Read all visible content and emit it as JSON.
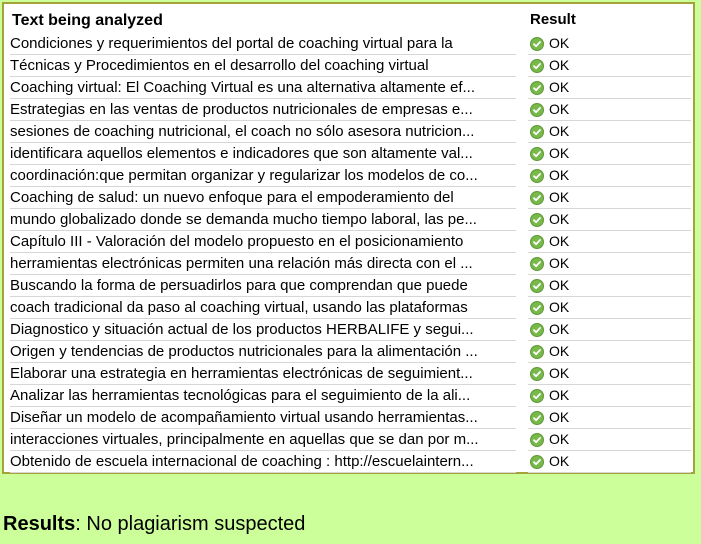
{
  "table": {
    "header_text": "Text being analyzed",
    "header_result": "Result",
    "rows": [
      {
        "text": "Condiciones y requerimientos del portal de coaching virtual para la",
        "result": "OK"
      },
      {
        "text": "Técnicas y Procedimientos en el desarrollo del coaching virtual",
        "result": "OK"
      },
      {
        "text": "Coaching virtual: El Coaching Virtual es una alternativa altamente ef...",
        "result": "OK"
      },
      {
        "text": "Estrategias en las ventas de productos nutricionales de empresas e...",
        "result": "OK"
      },
      {
        "text": "sesiones de coaching nutricional, el coach no sólo asesora nutricion...",
        "result": "OK"
      },
      {
        "text": "identificara aquellos elementos e indicadores que son altamente val...",
        "result": "OK"
      },
      {
        "text": "coordinación:que permitan organizar y regularizar los modelos de co...",
        "result": "OK"
      },
      {
        "text": "Coaching de salud: un nuevo enfoque para el empoderamiento del",
        "result": "OK"
      },
      {
        "text": "mundo globalizado donde se demanda mucho tiempo laboral, las pe...",
        "result": "OK"
      },
      {
        "text": "Capítulo III - Valoración del modelo propuesto en el posicionamiento",
        "result": "OK"
      },
      {
        "text": "herramientas electrónicas permiten una relación más directa con el ...",
        "result": "OK"
      },
      {
        "text": "Buscando la forma de persuadirlos para que comprendan que puede",
        "result": "OK"
      },
      {
        "text": "coach tradicional da paso al coaching virtual, usando las plataformas",
        "result": "OK"
      },
      {
        "text": "Diagnostico y situación actual de los productos HERBALIFE y segui...",
        "result": "OK"
      },
      {
        "text": "Origen y tendencias de productos nutricionales para la alimentación ...",
        "result": "OK"
      },
      {
        "text": "Elaborar una estrategia en herramientas electrónicas de seguimient...",
        "result": "OK"
      },
      {
        "text": "Analizar las herramientas tecnológicas para el seguimiento de la ali...",
        "result": "OK"
      },
      {
        "text": "Diseñar un modelo de acompañamiento virtual usando herramientas...",
        "result": "OK"
      },
      {
        "text": "interacciones virtuales, principalmente en aquellas que se dan por m...",
        "result": "OK"
      },
      {
        "text": "Obtenido de escuela internacional de coaching : http://escuelaintern...",
        "result": "OK"
      }
    ]
  },
  "summary": {
    "label": "Results",
    "separator": ": ",
    "value": "No plagiarism suspected"
  },
  "icons": {
    "row_status_icon": "check-circle-icon"
  },
  "colors": {
    "page_background": "#ccff99",
    "panel_border": "#a3a33a",
    "ok_icon": "#79b84a"
  }
}
